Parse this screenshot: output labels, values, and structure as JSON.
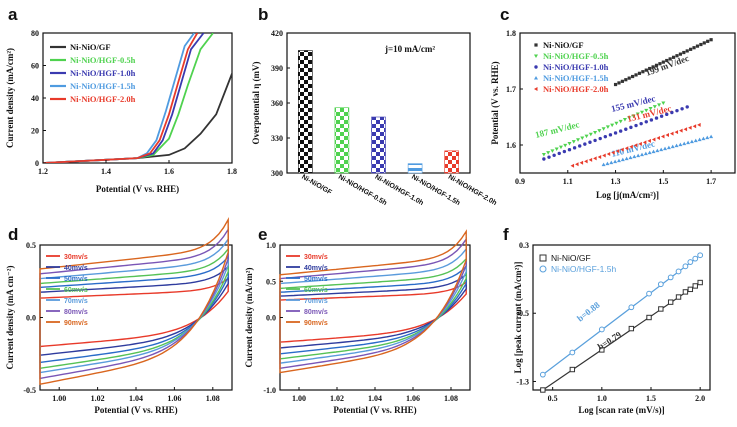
{
  "chart_data": [
    {
      "panel": "a",
      "type": "line",
      "xlabel": "Potential (V vs. RHE)",
      "ylabel": "Current density (mA/cm²)",
      "xlim": [
        1.2,
        1.8
      ],
      "ylim": [
        0,
        80
      ],
      "xticks": [
        "1.2",
        "1.4",
        "1.6",
        "1.8"
      ],
      "yticks": [
        "0",
        "20",
        "40",
        "60",
        "80"
      ],
      "series": [
        {
          "name": "Ni-NiO/GF",
          "color": "#333333",
          "x": [
            1.2,
            1.3,
            1.4,
            1.5,
            1.55,
            1.6,
            1.65,
            1.7,
            1.75,
            1.8
          ],
          "y": [
            0,
            1,
            2,
            3,
            4,
            5,
            9,
            18,
            30,
            55
          ]
        },
        {
          "name": "Ni-NiO/HGF-0.5h",
          "color": "#4fd24f",
          "x": [
            1.2,
            1.3,
            1.4,
            1.5,
            1.55,
            1.6,
            1.63,
            1.66,
            1.7,
            1.74
          ],
          "y": [
            0,
            1,
            2,
            3,
            5,
            15,
            30,
            48,
            70,
            80
          ]
        },
        {
          "name": "Ni-NiO/HGF-1.0h",
          "color": "#3a3ab0",
          "x": [
            1.2,
            1.3,
            1.4,
            1.5,
            1.55,
            1.58,
            1.61,
            1.64,
            1.67,
            1.71
          ],
          "y": [
            0,
            1,
            2,
            3,
            6,
            14,
            30,
            50,
            70,
            80
          ]
        },
        {
          "name": "Ni-NiO/HGF-1.5h",
          "color": "#4f9be0",
          "x": [
            1.2,
            1.3,
            1.4,
            1.5,
            1.53,
            1.56,
            1.59,
            1.62,
            1.65,
            1.68
          ],
          "y": [
            0,
            1,
            2,
            3,
            6,
            14,
            32,
            52,
            72,
            80
          ]
        },
        {
          "name": "Ni-NiO/HGF-2.0h",
          "color": "#e83a2a",
          "x": [
            1.2,
            1.3,
            1.4,
            1.5,
            1.54,
            1.57,
            1.6,
            1.63,
            1.66,
            1.69
          ],
          "y": [
            0,
            1,
            2,
            3,
            6,
            14,
            30,
            50,
            70,
            80
          ]
        }
      ]
    },
    {
      "panel": "b",
      "type": "bar",
      "ylabel": "Overpotential η (mV)",
      "ylim": [
        300,
        420
      ],
      "yticks": [
        "300",
        "330",
        "360",
        "390",
        "420"
      ],
      "annotation": "j=10 mA/cm²",
      "categories": [
        "Ni-NiO/GF",
        "Ni-NiO/HGF-0.5h",
        "Ni-NiO/HGF-1.0h",
        "Ni-NiO/HGF-1.5h",
        "Ni-NiO/HGF-2.0h"
      ],
      "values": [
        405,
        356,
        348,
        308,
        319
      ],
      "colors": [
        "#111111",
        "#4fd24f",
        "#3a3ab0",
        "#4f9be0",
        "#e83a2a"
      ]
    },
    {
      "panel": "c",
      "type": "scatter",
      "xlabel": "Log [j(mA/cm²)]",
      "ylabel": "Potential (V vs. RHE)",
      "xlim": [
        0.9,
        1.8
      ],
      "ylim": [
        1.55,
        1.8
      ],
      "xticks": [
        "0.9",
        "1.1",
        "1.3",
        "1.5",
        "1.7"
      ],
      "yticks": [
        "1.6",
        "1.7",
        "1.8"
      ],
      "series": [
        {
          "name": "Ni-NiO/GF",
          "color": "#333333",
          "marker": "square",
          "x": [
            1.3,
            1.7
          ],
          "y": [
            1.708,
            1.788
          ],
          "tafel": "199 mV/dec"
        },
        {
          "name": "Ni-NiO/HGF-0.5h",
          "color": "#4fd24f",
          "marker": "triangle-down",
          "x": [
            1.0,
            1.5
          ],
          "y": [
            1.583,
            1.675
          ],
          "tafel": "187 mV/dec"
        },
        {
          "name": "Ni-NiO/HGF-1.0h",
          "color": "#3a3ab0",
          "marker": "circle",
          "x": [
            1.0,
            1.6
          ],
          "y": [
            1.575,
            1.668
          ],
          "tafel": "155 mV/dec"
        },
        {
          "name": "Ni-NiO/HGF-1.5h",
          "color": "#4f9be0",
          "marker": "triangle-up",
          "x": [
            1.25,
            1.7
          ],
          "y": [
            1.565,
            1.615
          ],
          "tafel": "110 mV/dec"
        },
        {
          "name": "Ni-NiO/HGF-2.0h",
          "color": "#e83a2a",
          "marker": "triangle-left",
          "x": [
            1.12,
            1.65
          ],
          "y": [
            1.563,
            1.636
          ],
          "tafel": "131 mV/dec"
        }
      ]
    },
    {
      "panel": "d",
      "type": "line",
      "xlabel": "Potential (V vs. RHE)",
      "ylabel": "Current density (mA cm⁻²)",
      "xlim": [
        0.99,
        1.09
      ],
      "ylim": [
        -0.5,
        0.5
      ],
      "xticks": [
        "1.00",
        "1.02",
        "1.04",
        "1.06",
        "1.08"
      ],
      "yticks": [
        "-0.5",
        "0.0",
        "0.5"
      ],
      "series": [
        {
          "name": "30mv/s",
          "color": "#e83a2a",
          "upper": 0.2,
          "lower": -0.2
        },
        {
          "name": "40mv/s",
          "color": "#2f3c9e",
          "upper": 0.26,
          "lower": -0.26
        },
        {
          "name": "50mv/s",
          "color": "#2a6cc9",
          "upper": 0.31,
          "lower": -0.31
        },
        {
          "name": "60mv/s",
          "color": "#56c256",
          "upper": 0.35,
          "lower": -0.35
        },
        {
          "name": "70mv/s",
          "color": "#5a9bdc",
          "upper": 0.4,
          "lower": -0.38
        },
        {
          "name": "80mv/s",
          "color": "#7a56b6",
          "upper": 0.45,
          "lower": -0.42
        },
        {
          "name": "90mv/s",
          "color": "#d9661f",
          "upper": 0.5,
          "lower": -0.46
        }
      ]
    },
    {
      "panel": "e",
      "type": "line",
      "xlabel": "Potential (V vs. RHE)",
      "ylabel": "Current density (mA/cm²)",
      "xlim": [
        0.99,
        1.09
      ],
      "ylim": [
        -1.0,
        1.0
      ],
      "xticks": [
        "1.00",
        "1.02",
        "1.04",
        "1.06",
        "1.08"
      ],
      "yticks": [
        "-1.0",
        "0.0",
        "0.5",
        "1.0"
      ],
      "series": [
        {
          "name": "30mv/s",
          "color": "#e83a2a",
          "upper": 0.36,
          "lower": -0.34
        },
        {
          "name": "40mv/s",
          "color": "#2f3c9e",
          "upper": 0.44,
          "lower": -0.42
        },
        {
          "name": "50mv/s",
          "color": "#2a6cc9",
          "upper": 0.52,
          "lower": -0.5
        },
        {
          "name": "60mv/s",
          "color": "#56c256",
          "upper": 0.6,
          "lower": -0.57
        },
        {
          "name": "70mv/s",
          "color": "#5a9bdc",
          "upper": 0.7,
          "lower": -0.63
        },
        {
          "name": "80mv/s",
          "color": "#7a56b6",
          "upper": 0.8,
          "lower": -0.7
        },
        {
          "name": "90mv/s",
          "color": "#d9661f",
          "upper": 0.88,
          "lower": -0.76
        }
      ]
    },
    {
      "panel": "f",
      "type": "scatter",
      "xlabel": "Log [scan rate (mV/s)]",
      "ylabel": "Log [peak current (mA/cm²)]",
      "xlim": [
        0.3,
        2.1
      ],
      "ylim": [
        -1.4,
        0.3
      ],
      "xticks": [
        "0.5",
        "1.0",
        "1.5",
        "2.0"
      ],
      "yticks": [
        "-1.3",
        "-0.5",
        "0.3"
      ],
      "series": [
        {
          "name": "Ni-NiO/GF",
          "color": "#333333",
          "marker": "square-open",
          "slope": "b=0.79",
          "x": [
            0.4,
            0.7,
            1.0,
            1.3,
            1.48,
            1.6,
            1.7,
            1.78,
            1.85,
            1.9,
            1.95,
            2.0
          ],
          "y": [
            -1.4,
            -1.16,
            -0.93,
            -0.68,
            -0.55,
            -0.45,
            -0.37,
            -0.31,
            -0.25,
            -0.22,
            -0.18,
            -0.14
          ]
        },
        {
          "name": "Ni-NiO/HGF-1.5h",
          "color": "#5aa0dc",
          "marker": "circle-open",
          "slope": "b=0.88",
          "x": [
            0.4,
            0.7,
            1.0,
            1.3,
            1.48,
            1.6,
            1.7,
            1.78,
            1.85,
            1.9,
            1.95,
            2.0
          ],
          "y": [
            -1.22,
            -0.96,
            -0.69,
            -0.43,
            -0.27,
            -0.16,
            -0.08,
            -0.01,
            0.05,
            0.1,
            0.14,
            0.18
          ]
        }
      ]
    }
  ]
}
